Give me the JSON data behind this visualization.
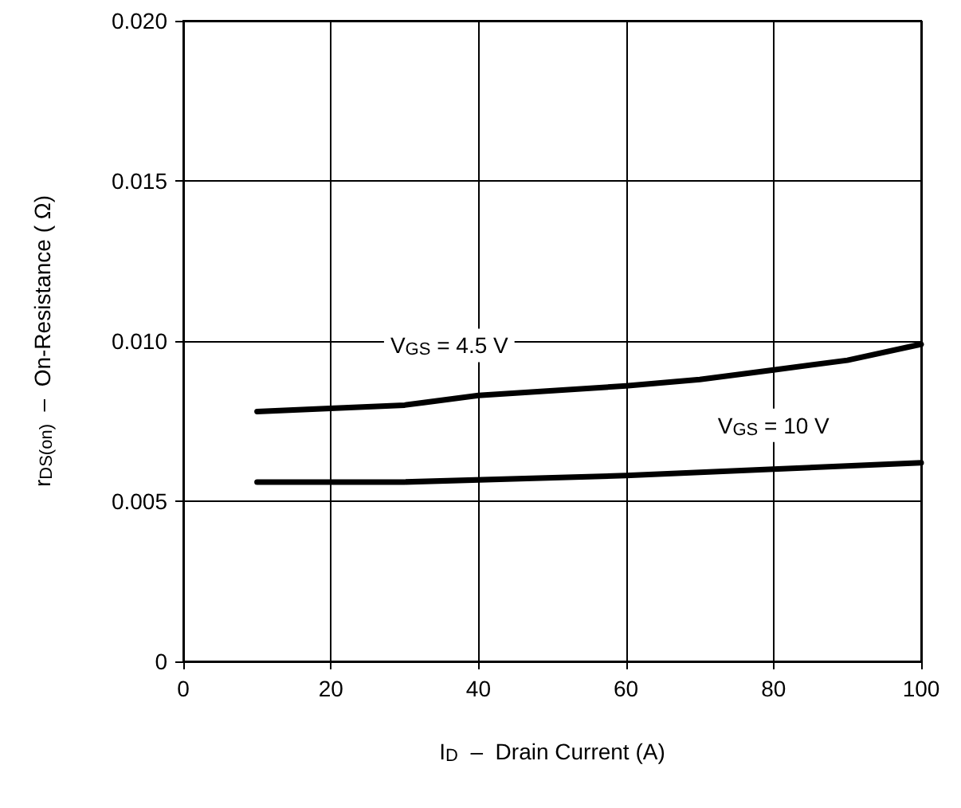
{
  "chart_data": {
    "type": "line",
    "xlabel": "I$_{D}$  –  Drain Current (A)",
    "ylabel": "r$_{DS(on)}$  –  On-Resistance ( Ω)",
    "xlim": [
      0,
      100
    ],
    "xticks": [
      0,
      20,
      40,
      60,
      80,
      100
    ],
    "ylim": [
      0,
      0.02
    ],
    "yticks": [
      0,
      0.005,
      {
        "value": 0.01,
        "label": "0.010"
      },
      0.015,
      {
        "value": 0.02,
        "label": "0.020"
      }
    ],
    "grid": true,
    "legend": false,
    "marker": "none",
    "line_style": "solid",
    "series": [
      {
        "name": "V$_{GS}$ = 4.5 V",
        "color": "#000000",
        "x": [
          10,
          30,
          40,
          60,
          70,
          80,
          90,
          100
        ],
        "values": [
          0.0078,
          0.008,
          0.0083,
          0.0086,
          0.0088,
          0.0091,
          0.0094,
          0.0099
        ]
      },
      {
        "name": "V$_{GS}$ = 10 V",
        "color": "#000000",
        "x": [
          10,
          30,
          60,
          80,
          100
        ],
        "values": [
          0.0056,
          0.0056,
          0.0058,
          0.006,
          0.0062
        ]
      }
    ]
  }
}
